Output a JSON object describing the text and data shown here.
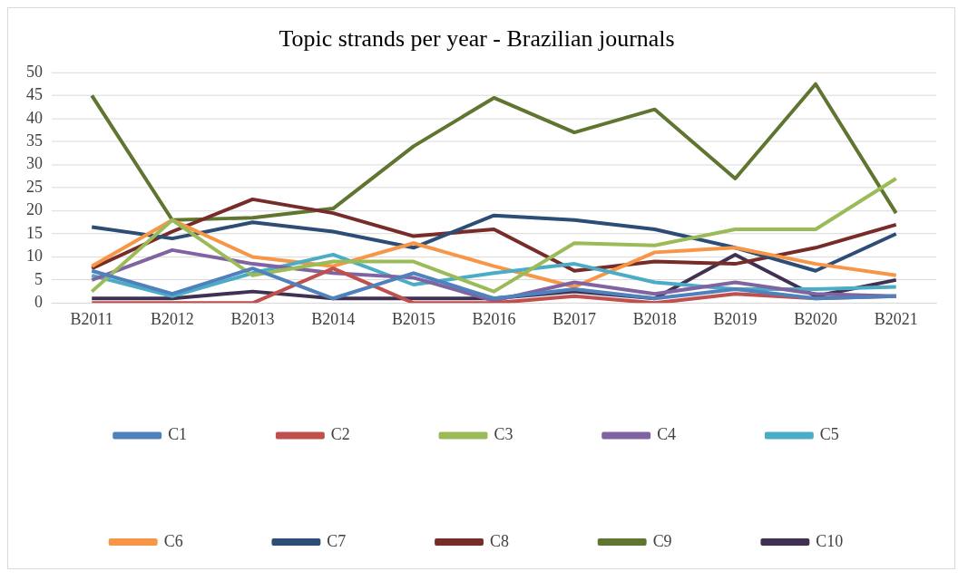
{
  "chart_data": {
    "type": "line",
    "title": "Topic strands per year - Brazilian journals",
    "categories": [
      "B2011",
      "B2012",
      "B2013",
      "B2014",
      "B2015",
      "B2016",
      "B2017",
      "B2018",
      "B2019",
      "B2020",
      "B2021"
    ],
    "ylim": [
      0,
      50
    ],
    "yticks": [
      0,
      5,
      10,
      15,
      20,
      25,
      30,
      35,
      40,
      45,
      50
    ],
    "grid": "y",
    "legend": "bottom",
    "marker": "none",
    "line_style": "solid",
    "series": [
      {
        "name": "C1",
        "color": "#4f81bd",
        "values": [
          7,
          2,
          7.5,
          1,
          6.5,
          1,
          3,
          1,
          3,
          1,
          1.5
        ]
      },
      {
        "name": "C2",
        "color": "#c0504d",
        "values": [
          0,
          0,
          0,
          7.5,
          0,
          0,
          1.5,
          0,
          2,
          1,
          1.5
        ]
      },
      {
        "name": "C3",
        "color": "#9bbb59",
        "values": [
          2.5,
          18,
          6,
          9,
          9,
          2.5,
          13,
          12.5,
          16,
          16,
          27
        ]
      },
      {
        "name": "C4",
        "color": "#8064a2",
        "values": [
          5,
          11.5,
          8.5,
          6.5,
          5.5,
          0.5,
          4.5,
          2,
          4.5,
          2,
          1.5
        ]
      },
      {
        "name": "C5",
        "color": "#4bacc6",
        "values": [
          6,
          1.5,
          6.5,
          10.5,
          4,
          6.5,
          8.5,
          4.5,
          3,
          3,
          3.5
        ]
      },
      {
        "name": "C6",
        "color": "#f79646",
        "values": [
          8,
          18,
          10,
          8,
          13,
          8,
          3.5,
          11,
          12,
          8.5,
          6
        ]
      },
      {
        "name": "C7",
        "color": "#2c4d75",
        "values": [
          16.5,
          14,
          17.5,
          15.5,
          12,
          19,
          18,
          16,
          12,
          7,
          15
        ]
      },
      {
        "name": "C8",
        "color": "#772c2a",
        "values": [
          7.5,
          15.5,
          22.5,
          19.5,
          14.5,
          16,
          7,
          9,
          8.5,
          12,
          17
        ]
      },
      {
        "name": "C9",
        "color": "#5f7530",
        "values": [
          45,
          18,
          18.5,
          20.5,
          34,
          44.5,
          37,
          42,
          27,
          47.5,
          19.5
        ]
      },
      {
        "name": "C10",
        "color": "#403152",
        "values": [
          1,
          1,
          2.5,
          1,
          1,
          1,
          2.5,
          1,
          10.5,
          1.5,
          5
        ]
      }
    ]
  }
}
